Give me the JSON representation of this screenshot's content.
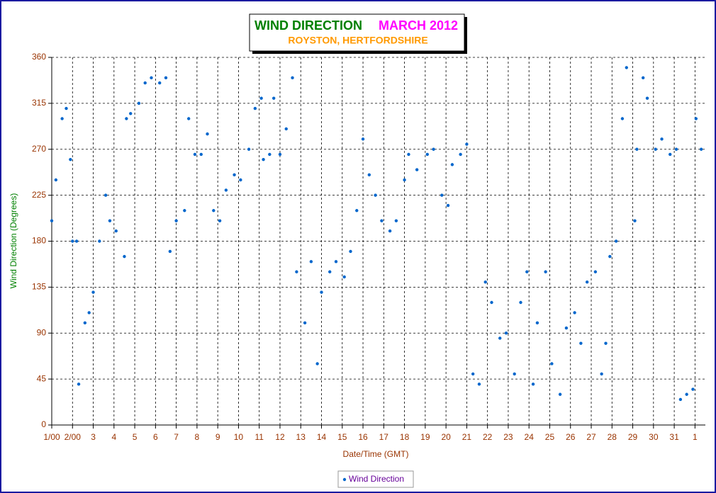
{
  "chart_data": {
    "type": "scatter",
    "title": "WIND DIRECTION",
    "title_period": "MARCH 2012",
    "subtitle": "ROYSTON, HERTFORDSHIRE",
    "x_label": "Date/Time (GMT)",
    "y_label": "Wind Direction (Degrees)",
    "xlim": [
      0,
      31.5
    ],
    "ylim": [
      0,
      360
    ],
    "yticks": [
      0,
      45,
      90,
      135,
      180,
      225,
      270,
      315,
      360
    ],
    "xticks": [
      {
        "value": 0,
        "label": "1/00"
      },
      {
        "value": 1,
        "label": "2/00"
      },
      {
        "value": 2,
        "label": "3"
      },
      {
        "value": 3,
        "label": "4"
      },
      {
        "value": 4,
        "label": "5"
      },
      {
        "value": 5,
        "label": "6"
      },
      {
        "value": 6,
        "label": "7"
      },
      {
        "value": 7,
        "label": "8"
      },
      {
        "value": 8,
        "label": "9"
      },
      {
        "value": 9,
        "label": "10"
      },
      {
        "value": 10,
        "label": "11"
      },
      {
        "value": 11,
        "label": "12"
      },
      {
        "value": 12,
        "label": "13"
      },
      {
        "value": 13,
        "label": "14"
      },
      {
        "value": 14,
        "label": "15"
      },
      {
        "value": 15,
        "label": "16"
      },
      {
        "value": 16,
        "label": "17"
      },
      {
        "value": 17,
        "label": "18"
      },
      {
        "value": 18,
        "label": "19"
      },
      {
        "value": 19,
        "label": "20"
      },
      {
        "value": 20,
        "label": "21"
      },
      {
        "value": 21,
        "label": "22"
      },
      {
        "value": 22,
        "label": "23"
      },
      {
        "value": 23,
        "label": "24"
      },
      {
        "value": 24,
        "label": "25"
      },
      {
        "value": 25,
        "label": "26"
      },
      {
        "value": 26,
        "label": "27"
      },
      {
        "value": 27,
        "label": "28"
      },
      {
        "value": 28,
        "label": "29"
      },
      {
        "value": 29,
        "label": "30"
      },
      {
        "value": 30,
        "label": "31"
      },
      {
        "value": 31,
        "label": "1"
      }
    ],
    "grid": true,
    "x": [
      0,
      0.2,
      0.5,
      0.7,
      0.9,
      1.0,
      1.2,
      1.3,
      1.6,
      1.8,
      2.0,
      2.3,
      2.6,
      2.8,
      3.1,
      3.5,
      3.6,
      3.8,
      4.2,
      4.5,
      4.8,
      5.2,
      5.5,
      5.7,
      6.0,
      6.4,
      6.6,
      6.9,
      7.2,
      7.5,
      7.8,
      8.1,
      8.4,
      8.8,
      9.1,
      9.5,
      9.8,
      10.1,
      10.2,
      10.5,
      10.7,
      11.0,
      11.3,
      11.6,
      11.8,
      12.2,
      12.5,
      12.8,
      13.0,
      13.4,
      13.7,
      14.1,
      14.4,
      14.7,
      15.0,
      15.3,
      15.6,
      15.9,
      16.3,
      16.6,
      17.0,
      17.2,
      17.6,
      18.1,
      18.4,
      18.8,
      19.1,
      19.3,
      19.7,
      20.0,
      20.3,
      20.6,
      20.9,
      21.2,
      21.6,
      21.9,
      22.3,
      22.6,
      22.9,
      23.2,
      23.4,
      23.8,
      24.1,
      24.5,
      24.8,
      25.2,
      25.5,
      25.8,
      26.2,
      26.5,
      26.7,
      26.9,
      27.2,
      27.5,
      27.7,
      28.1,
      28.2,
      28.5,
      28.7,
      29.1,
      29.4,
      29.8,
      30.1,
      30.3,
      30.6,
      30.9,
      31.05,
      31.3
    ],
    "series": [
      {
        "name": "Wind Direction",
        "color": "#0066cc",
        "values": [
          200,
          240,
          300,
          310,
          260,
          180,
          180,
          40,
          100,
          110,
          130,
          180,
          225,
          200,
          190,
          165,
          300,
          305,
          315,
          335,
          340,
          335,
          340,
          170,
          200,
          210,
          300,
          265,
          265,
          285,
          210,
          200,
          230,
          245,
          240,
          270,
          310,
          320,
          260,
          265,
          320,
          265,
          290,
          340,
          150,
          100,
          160,
          60,
          130,
          150,
          160,
          145,
          170,
          210,
          280,
          245,
          225,
          200,
          190,
          200,
          240,
          265,
          250,
          265,
          270,
          225,
          215,
          255,
          265,
          275,
          50,
          40,
          140,
          120,
          85,
          90,
          50,
          120,
          150,
          40,
          100,
          150,
          60,
          30,
          95,
          110,
          80,
          140,
          150,
          50,
          80,
          165,
          180,
          300,
          350,
          200,
          270,
          340,
          320,
          270,
          280,
          265,
          270,
          25,
          30,
          35,
          300,
          270
        ]
      }
    ]
  }
}
